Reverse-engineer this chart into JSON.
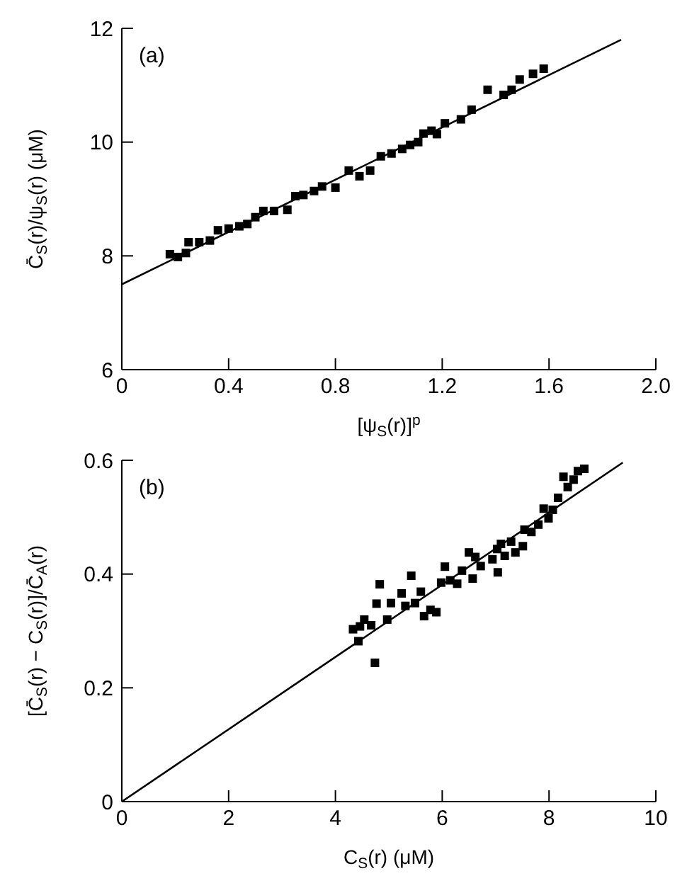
{
  "chart_data": [
    {
      "type": "scatter",
      "xlabel": "[ψ$_{S}$(r)]$^{p}$",
      "ylabel": "C̄$_{S}$(r)/ψ$_{S}$(r)   (μM)",
      "annotations": [
        "(a)"
      ],
      "xlim": [
        0,
        2
      ],
      "xticks": [
        {
          "value": 0,
          "label": "0"
        },
        0.4,
        0.8,
        1.2,
        1.6,
        {
          "value": 2,
          "label": "2.0"
        }
      ],
      "ylim": [
        6,
        12
      ],
      "yticks": [
        6,
        8,
        10,
        12
      ],
      "grid": false,
      "legend": false,
      "marker": "square",
      "series": [
        {
          "color": "#000000",
          "x": [
            0.18,
            0.21,
            0.24,
            0.25,
            0.29,
            0.33,
            0.36,
            0.4,
            0.44,
            0.47,
            0.5,
            0.53,
            0.57,
            0.62,
            0.65,
            0.68,
            0.72,
            0.75,
            0.8,
            0.85,
            0.89,
            0.93,
            0.97,
            1.01,
            1.05,
            1.08,
            1.11,
            1.13,
            1.16,
            1.18,
            1.21,
            1.27,
            1.31,
            1.37,
            1.43,
            1.46,
            1.49,
            1.54,
            1.58
          ],
          "values": [
            8.03,
            7.98,
            8.05,
            8.24,
            8.24,
            8.27,
            8.45,
            8.48,
            8.52,
            8.56,
            8.68,
            8.79,
            8.79,
            8.81,
            9.05,
            9.07,
            9.14,
            9.22,
            9.2,
            9.5,
            9.4,
            9.5,
            9.75,
            9.8,
            9.88,
            9.95,
            10.0,
            10.15,
            10.2,
            10.14,
            10.33,
            10.4,
            10.57,
            10.92,
            10.83,
            10.92,
            11.1,
            11.2,
            11.29
          ]
        },
        {
          "type": "line",
          "color": "#000000",
          "marker": "none",
          "x": [
            0,
            1.87
          ],
          "values": [
            7.5,
            11.8
          ]
        }
      ]
    },
    {
      "type": "scatter",
      "xlabel": "C$_{S}$(r)   (μM)",
      "ylabel": "[C̄$_{S}$(r) − C$_{S}$(r)]/C̄$_{A}$(r)",
      "annotations": [
        "(b)"
      ],
      "xlim": [
        0,
        10
      ],
      "xticks": [
        0,
        2,
        4,
        6,
        8,
        10
      ],
      "ylim": [
        0,
        0.6
      ],
      "yticks": [
        0,
        0.2,
        0.4,
        0.6
      ],
      "grid": false,
      "legend": false,
      "marker": "square",
      "series": [
        {
          "color": "#000000",
          "x": [
            4.33,
            4.46,
            4.43,
            4.54,
            4.67,
            4.74,
            4.77,
            4.83,
            4.97,
            5.04,
            5.24,
            5.31,
            5.42,
            5.49,
            5.6,
            5.66,
            5.78,
            5.89,
            5.98,
            6.05,
            6.15,
            6.28,
            6.37,
            6.5,
            6.57,
            6.62,
            6.72,
            6.94,
            7.04,
            7.03,
            7.1,
            7.17,
            7.29,
            7.37,
            7.51,
            7.54,
            7.67,
            7.8,
            7.9,
            7.99,
            8.07,
            8.17,
            8.27,
            8.35,
            8.46,
            8.54,
            8.66
          ],
          "values": [
            0.303,
            0.308,
            0.282,
            0.32,
            0.31,
            0.244,
            0.348,
            0.382,
            0.32,
            0.349,
            0.366,
            0.344,
            0.397,
            0.349,
            0.369,
            0.326,
            0.337,
            0.333,
            0.385,
            0.413,
            0.389,
            0.383,
            0.406,
            0.438,
            0.392,
            0.43,
            0.414,
            0.426,
            0.403,
            0.444,
            0.453,
            0.432,
            0.457,
            0.438,
            0.449,
            0.478,
            0.474,
            0.487,
            0.515,
            0.498,
            0.513,
            0.534,
            0.571,
            0.553,
            0.566,
            0.581,
            0.585
          ]
        },
        {
          "type": "line",
          "color": "#000000",
          "marker": "none",
          "x": [
            0,
            9.38
          ],
          "values": [
            0,
            0.596
          ]
        }
      ]
    }
  ]
}
